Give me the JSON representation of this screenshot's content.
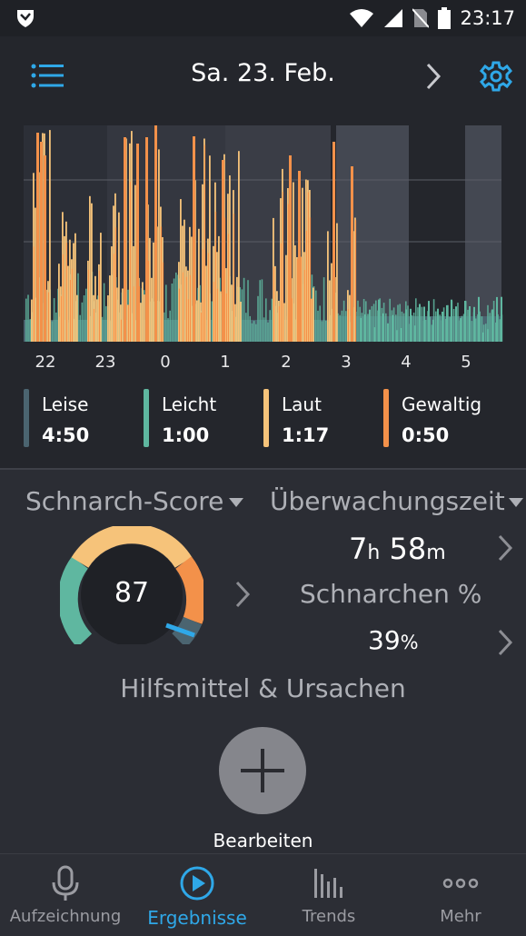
{
  "status_bar": {
    "time": "23:17"
  },
  "header": {
    "date": "Sa. 23. Feb."
  },
  "chart_data": {
    "type": "bar",
    "x_tick_labels": [
      "22",
      "23",
      "0",
      "1",
      "2",
      "3",
      "4",
      "5"
    ],
    "categories": [
      "Leise",
      "Leicht",
      "Laut",
      "Gewaltig"
    ],
    "colors": {
      "Leise": "#4b6470",
      "Leicht": "#5fb7a0",
      "Laut": "#f6c37a",
      "Gewaltig": "#f3914a"
    },
    "legend_placement": "bottom"
  },
  "legend": [
    {
      "label": "Leise",
      "value": "4:50",
      "color": "#4b6470"
    },
    {
      "label": "Leicht",
      "value": "1:00",
      "color": "#5fb7a0"
    },
    {
      "label": "Laut",
      "value": "1:17",
      "color": "#f6c37a"
    },
    {
      "label": "Gewaltig",
      "value": "0:50",
      "color": "#f3914a"
    }
  ],
  "stats": {
    "score_title": "Schnarch-Score",
    "score_value": "87",
    "monitor_title": "Überwachungszeit",
    "monitor_hours": "7",
    "monitor_h_unit": "h",
    "monitor_minutes": "58",
    "monitor_m_unit": "m",
    "snore_pct_title": "Schnarchen %",
    "snore_pct_value": "39",
    "snore_pct_unit": "%",
    "aids_title": "Hilfsmittel & Ursachen",
    "edit_label": "Bearbeiten"
  },
  "nav": [
    {
      "label": "Aufzeichnung",
      "icon": "microphone-icon",
      "active": false
    },
    {
      "label": "Ergebnisse",
      "icon": "play-circle-icon",
      "active": true
    },
    {
      "label": "Trends",
      "icon": "bar-chart-icon",
      "active": false
    },
    {
      "label": "Mehr",
      "icon": "more-dots-icon",
      "active": false
    }
  ],
  "colors": {
    "accent": "#2fa8e8",
    "background": "#24262c"
  }
}
